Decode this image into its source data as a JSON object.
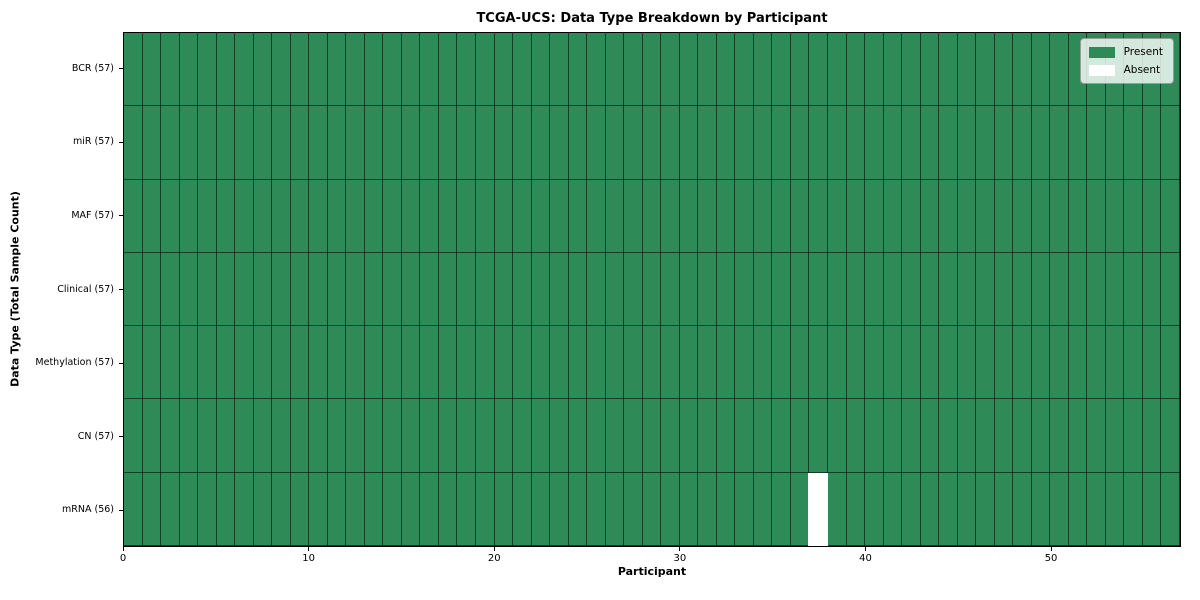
{
  "chart_data": {
    "type": "heatmap",
    "title": "TCGA-UCS: Data Type Breakdown by Participant",
    "xlabel": "Participant",
    "ylabel": "Data Type (Total Sample Count)",
    "x_ticks": [
      0,
      10,
      20,
      30,
      40,
      50
    ],
    "x_range": [
      0,
      57
    ],
    "n_participants": 57,
    "grid": true,
    "rows": [
      {
        "label": "BCR (57)",
        "total": 57,
        "absent_participants": []
      },
      {
        "label": "miR (57)",
        "total": 57,
        "absent_participants": []
      },
      {
        "label": "MAF (57)",
        "total": 57,
        "absent_participants": []
      },
      {
        "label": "Clinical (57)",
        "total": 57,
        "absent_participants": []
      },
      {
        "label": "Methylation (57)",
        "total": 57,
        "absent_participants": []
      },
      {
        "label": "CN (57)",
        "total": 57,
        "absent_participants": []
      },
      {
        "label": "mRNA (56)",
        "total": 56,
        "absent_participants": [
          37
        ]
      }
    ],
    "legend": {
      "position": "upper right",
      "entries": [
        {
          "label": "Present",
          "color": "#2e8b57"
        },
        {
          "label": "Absent",
          "color": "#ffffff"
        }
      ]
    },
    "colors": {
      "present": "#2e8b57",
      "absent": "#ffffff",
      "grid_line": "rgba(0,0,0,0.55)",
      "frame": "#000000"
    }
  }
}
